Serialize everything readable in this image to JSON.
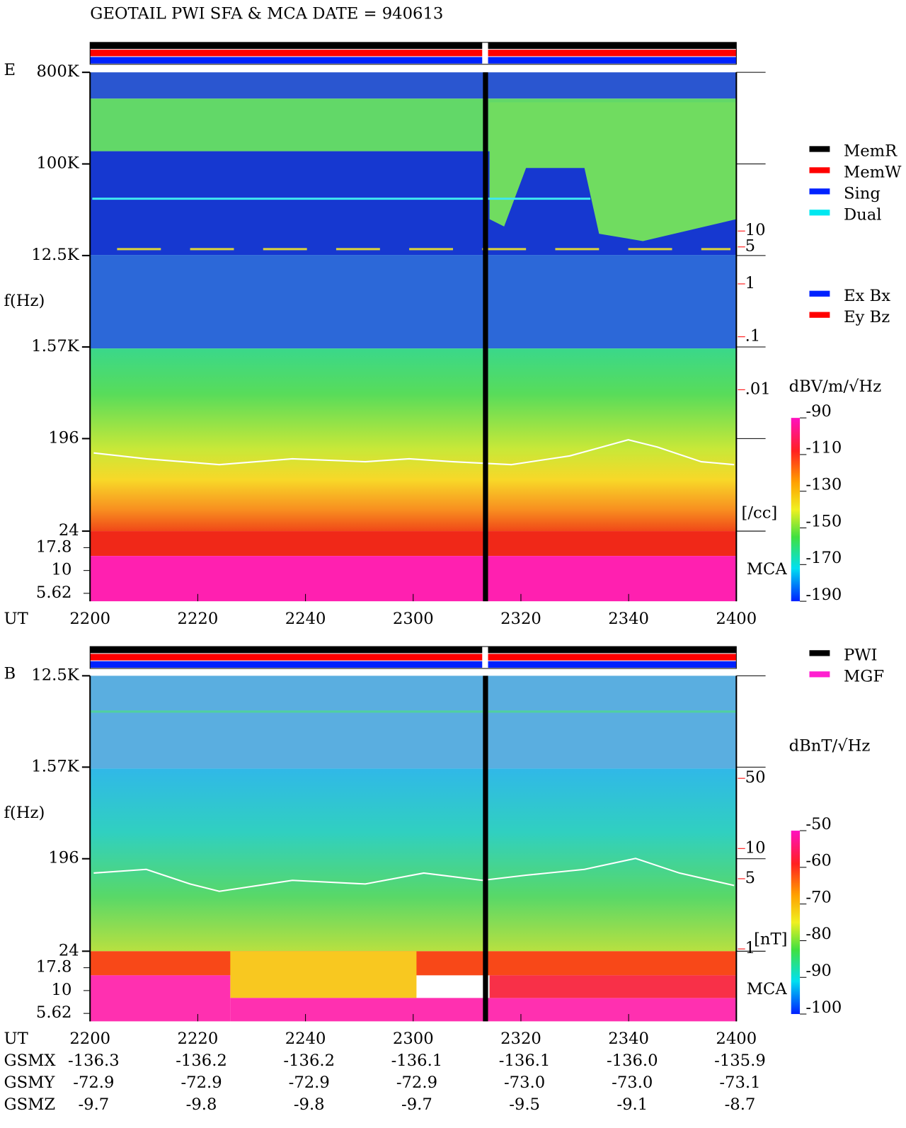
{
  "chart_data": [
    {
      "type": "spectrogram",
      "title": "GEOTAIL  PWI SFA & MCA   DATE = 940613",
      "panel_label": "E",
      "ylabel": "f(Hz)",
      "xlabel": "UT",
      "categories": [
        "2200",
        "2220",
        "2240",
        "2300",
        "2320",
        "2340",
        "2400"
      ],
      "ylog": true,
      "ylim": [
        800000,
        24
      ],
      "yticks": [
        {
          "value": 800000,
          "label": "800K"
        },
        {
          "value": 100000,
          "label": "100K"
        },
        {
          "value": 12500,
          "label": "12.5K"
        },
        {
          "value": 1570,
          "label": "1.57K"
        },
        196,
        24
      ],
      "mca_label": "MCA",
      "mca_ylim": [
        27,
        4.6
      ],
      "mca_yticks": [
        17.8,
        10,
        5.62
      ],
      "y2lim": [
        10000,
        1e-06
      ],
      "y2ticks": [
        10,
        5,
        1,
        {
          "value": 0.1,
          "label": ".1"
        },
        {
          "value": 0.01,
          "label": ".01"
        }
      ],
      "y2label": "[/cc]",
      "y2color": "#ff0000",
      "colorbar": {
        "label": "dBV/m/√Hz",
        "lim": [
          -90,
          -190
        ],
        "ticks": [
          -90,
          -110,
          -130,
          -150,
          -170,
          -190
        ]
      },
      "legend": [
        {
          "name": "MemR",
          "color": "#000000"
        },
        {
          "name": "MemW",
          "color": "#ff0000"
        },
        {
          "name": "Sing",
          "color": "#0022ff"
        },
        {
          "name": "Dual",
          "color": "#00e8f0"
        }
      ],
      "legend2": [
        {
          "name": "Ex Bx",
          "color": "#0022ff"
        },
        {
          "name": "Ey Bz",
          "color": "#ff0000"
        }
      ]
    },
    {
      "type": "spectrogram",
      "panel_label": "B",
      "ylabel": "f(Hz)",
      "xlabel": "UT",
      "categories": [
        "2200",
        "2220",
        "2240",
        "2300",
        "2320",
        "2340",
        "2400"
      ],
      "ylog": true,
      "ylim": [
        12500,
        24
      ],
      "yticks": [
        {
          "value": 12500,
          "label": "12.5K"
        },
        {
          "value": 1570,
          "label": "1.57K"
        },
        196,
        24
      ],
      "mca_label": "MCA",
      "mca_ylim": [
        27,
        4.6
      ],
      "mca_yticks": [
        17.8,
        10,
        5.62
      ],
      "y2lim": [
        525,
        0.19
      ],
      "y2ticks": [
        50,
        10,
        5,
        1
      ],
      "y2label": "[nT]",
      "y2color": "#ff0000",
      "colorbar": {
        "label": "dBnT/√Hz",
        "lim": [
          -50,
          -100
        ],
        "ticks": [
          -50,
          -60,
          -70,
          -80,
          -90,
          -100
        ]
      },
      "legend": [
        {
          "name": "PWI",
          "color": "#000000"
        },
        {
          "name": "MGF",
          "color": "#ff20d0"
        }
      ],
      "ephemeris": [
        {
          "name": "GSMX",
          "values": [
            -136.3,
            -136.2,
            -136.2,
            -136.1,
            -136.1,
            -136.0,
            -135.9
          ],
          "value_labels": [
            "-136.3",
            "-136.2",
            "-136.2",
            "-136.1",
            "-136.1",
            "-136.0",
            "-135.9"
          ]
        },
        {
          "name": "GSMY",
          "values": [
            -72.9,
            -72.9,
            -72.9,
            -72.9,
            -73.0,
            -73.0,
            -73.1
          ],
          "value_labels": [
            "-72.9",
            "-72.9",
            "-72.9",
            "-72.9",
            "-73.0",
            "-73.0",
            "-73.1"
          ]
        },
        {
          "name": "GSMZ",
          "values": [
            -9.7,
            -9.8,
            -9.8,
            -9.7,
            -9.5,
            -9.1,
            -8.7
          ],
          "value_labels": [
            "-9.7",
            "-9.8",
            "-9.8",
            "-9.7",
            "-9.5",
            "-9.1",
            "-8.7"
          ]
        }
      ]
    }
  ]
}
